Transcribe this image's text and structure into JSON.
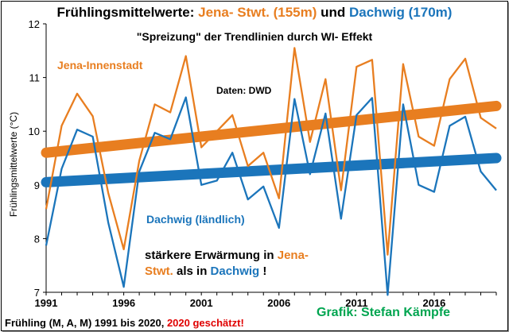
{
  "header": {
    "title_part1": "Frühlingsmittelwerte: ",
    "title_jena": "Jena- Stwt. (155m)",
    "title_and": " und ",
    "title_dachwig": "Dachwig (170m)",
    "subtitle": "\"Spreizung\" der Trendlinien durch WI- Effekt"
  },
  "annotations": {
    "jena_label": "Jena-Innenstadt",
    "dachwig_label": "Dachwig (ländlich)",
    "source": "Daten: DWD",
    "note_part1": "stärkere Erwärmung in ",
    "note_jena": "Jena-",
    "note_part2": "Stwt.",
    "note_als": " als in ",
    "note_dachwig": "Dachwig",
    "note_end": " !"
  },
  "footer": {
    "left_text": "Frühling (M, A, M) 1991 bis 2020, ",
    "estimate_text": "2020 geschätzt!",
    "credit": "Grafik: Stefan Kämpfe"
  },
  "colors": {
    "jena": "#e87e20",
    "dachwig": "#1b75bb",
    "estimate": "#e00000",
    "credit": "#00a550"
  },
  "chart_data": {
    "type": "line",
    "ylabel": "Frühlingsmittelwerte (°C)",
    "ylim": [
      7,
      12
    ],
    "yticks": [
      7,
      8,
      9,
      10,
      11,
      12
    ],
    "xlim": [
      1991,
      2020
    ],
    "xticks": [
      1991,
      1996,
      2001,
      2006,
      2011,
      2016
    ],
    "grid": false,
    "x": [
      1991,
      1992,
      1993,
      1994,
      1995,
      1996,
      1997,
      1998,
      1999,
      2000,
      2001,
      2002,
      2003,
      2004,
      2005,
      2006,
      2007,
      2008,
      2009,
      2010,
      2011,
      2012,
      2013,
      2014,
      2015,
      2016,
      2017,
      2018,
      2019,
      2020
    ],
    "series": [
      {
        "name": "Jena-Innenstadt",
        "values": [
          8.55,
          10.1,
          10.7,
          10.28,
          8.85,
          7.8,
          9.45,
          10.5,
          10.35,
          11.4,
          9.7,
          10.0,
          10.3,
          9.35,
          9.6,
          8.75,
          11.55,
          9.8,
          10.97,
          8.9,
          11.2,
          11.33,
          7.7,
          11.25,
          9.9,
          9.73,
          10.97,
          11.35,
          10.25,
          10.05
        ]
      },
      {
        "name": "Dachwig (ländlich)",
        "values": [
          7.87,
          9.3,
          10.03,
          9.9,
          8.3,
          7.1,
          9.25,
          9.97,
          9.85,
          10.63,
          9.0,
          9.08,
          9.6,
          8.73,
          8.97,
          8.2,
          10.6,
          9.2,
          10.33,
          8.37,
          10.3,
          10.62,
          6.95,
          10.5,
          9.0,
          8.87,
          10.1,
          10.27,
          9.25,
          8.9
        ]
      }
    ],
    "trendlines": [
      {
        "series": "Jena-Innenstadt",
        "start": 9.6,
        "end": 10.47
      },
      {
        "series": "Dachwig (ländlich)",
        "start": 9.05,
        "end": 9.5
      }
    ]
  }
}
